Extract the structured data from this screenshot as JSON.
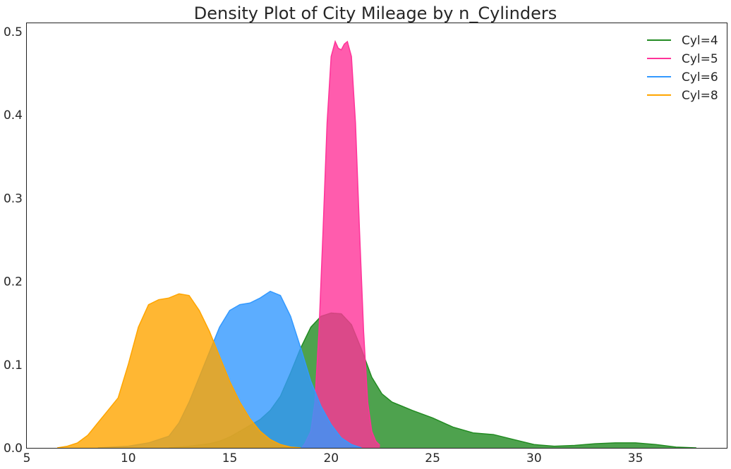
{
  "chart_data": {
    "type": "area",
    "title": "Density Plot of City Mileage by n_Cylinders",
    "xlabel": "",
    "ylabel": "",
    "xlim": [
      5,
      39.5
    ],
    "ylim": [
      0,
      0.51
    ],
    "x_ticks": [
      5,
      10,
      15,
      20,
      25,
      30,
      35
    ],
    "y_ticks": [
      0.0,
      0.1,
      0.2,
      0.3,
      0.4,
      0.5
    ],
    "x_tick_labels": [
      "5",
      "10",
      "15",
      "20",
      "25",
      "30",
      "35"
    ],
    "y_tick_labels": [
      "0.0",
      "0.1",
      "0.2",
      "0.3",
      "0.4",
      "0.5"
    ],
    "grid": false,
    "legend_position": "top-right",
    "series": [
      {
        "name": "Cyl=4",
        "color": "#228b22",
        "x": [
          12,
          13,
          14,
          14.5,
          15,
          15.5,
          16,
          16.5,
          17,
          17.5,
          18,
          18.5,
          19,
          19.5,
          20,
          20.5,
          21,
          21.5,
          22,
          22.5,
          23,
          23.5,
          24,
          25,
          26,
          27,
          28,
          29,
          30,
          31,
          32,
          33,
          34,
          35,
          36,
          37,
          38
        ],
        "y": [
          0,
          0.002,
          0.005,
          0.008,
          0.013,
          0.02,
          0.027,
          0.034,
          0.045,
          0.062,
          0.09,
          0.12,
          0.145,
          0.158,
          0.162,
          0.161,
          0.148,
          0.118,
          0.085,
          0.065,
          0.055,
          0.05,
          0.045,
          0.036,
          0.025,
          0.018,
          0.016,
          0.01,
          0.004,
          0.002,
          0.003,
          0.005,
          0.006,
          0.006,
          0.004,
          0.001,
          0
        ]
      },
      {
        "name": "Cyl=5",
        "color": "#ff3399",
        "x": [
          18.55,
          18.7,
          19,
          19.2,
          19.4,
          19.6,
          19.8,
          20,
          20.2,
          20.35,
          20.5,
          20.65,
          20.8,
          21,
          21.2,
          21.4,
          21.6,
          21.8,
          22,
          22.2,
          22.4
        ],
        "y": [
          0,
          0.005,
          0.02,
          0.055,
          0.14,
          0.26,
          0.39,
          0.47,
          0.488,
          0.48,
          0.478,
          0.485,
          0.488,
          0.47,
          0.39,
          0.26,
          0.14,
          0.055,
          0.02,
          0.008,
          0.003
        ]
      },
      {
        "name": "Cyl=6",
        "color": "#3399ff",
        "x": [
          8.5,
          10,
          11,
          12,
          12.5,
          13,
          13.5,
          14,
          14.5,
          15,
          15.5,
          16,
          16.5,
          17,
          17.5,
          18,
          18.5,
          19,
          19.5,
          20,
          20.5,
          21,
          21.5
        ],
        "y": [
          0,
          0.002,
          0.006,
          0.014,
          0.03,
          0.055,
          0.085,
          0.115,
          0.145,
          0.165,
          0.172,
          0.174,
          0.18,
          0.188,
          0.183,
          0.158,
          0.12,
          0.08,
          0.05,
          0.028,
          0.012,
          0.004,
          0
        ]
      },
      {
        "name": "Cyl=8",
        "color": "#ffa500",
        "x": [
          6.5,
          7,
          7.5,
          8,
          8.5,
          9,
          9.5,
          10,
          10.5,
          11,
          11.5,
          12,
          12.5,
          13,
          13.5,
          14,
          14.5,
          15,
          15.5,
          16,
          16.5,
          17,
          17.5,
          18,
          18.5
        ],
        "y": [
          0,
          0.002,
          0.006,
          0.015,
          0.03,
          0.045,
          0.06,
          0.1,
          0.145,
          0.172,
          0.178,
          0.18,
          0.185,
          0.183,
          0.165,
          0.14,
          0.11,
          0.08,
          0.055,
          0.035,
          0.02,
          0.01,
          0.004,
          0.001,
          0
        ]
      }
    ]
  }
}
